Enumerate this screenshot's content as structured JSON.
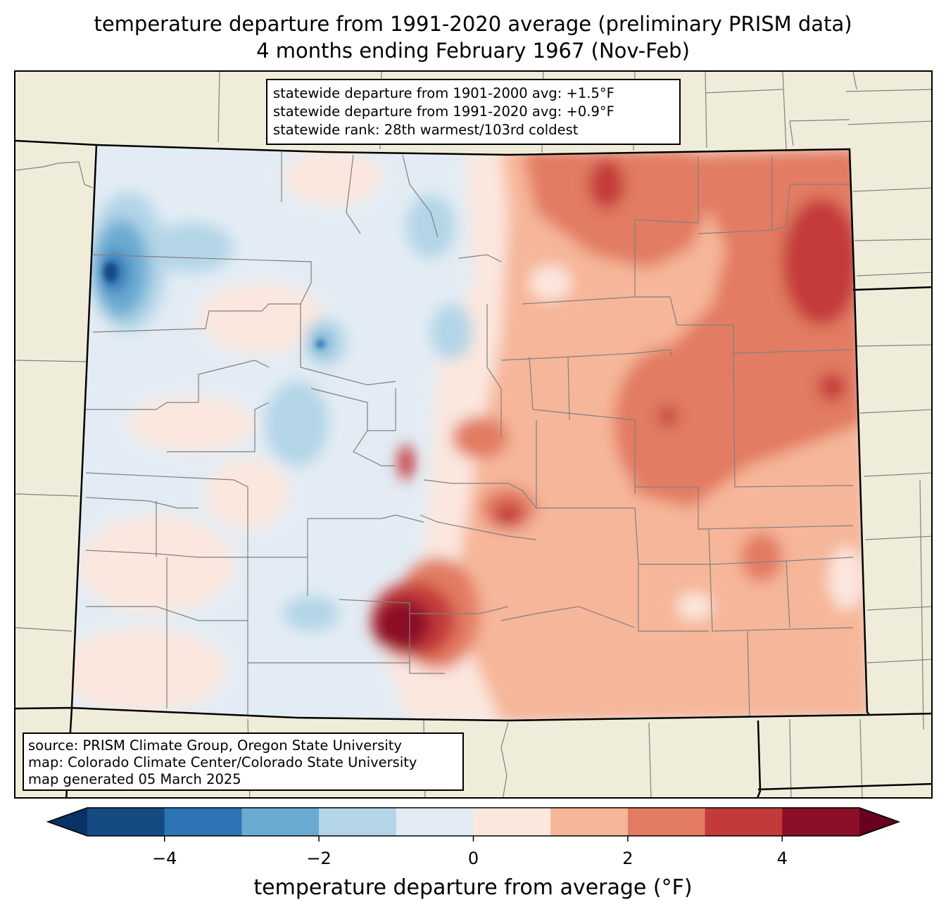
{
  "title": {
    "line1": "temperature departure from 1991-2020 average (preliminary PRISM data)",
    "line2": "4 months ending February 1967 (Nov-Feb)"
  },
  "stats": {
    "line1": "statewide departure from 1901-2000 avg: +1.5°F",
    "line2": "statewide departure from 1991-2020 avg: +0.9°F",
    "line3": "statewide rank: 28th warmest/103rd coldest"
  },
  "source": {
    "line1": "source: PRISM Climate Group, Oregon State University",
    "line2": "map: Colorado Climate Center/Colorado State University",
    "line3": "map generated 05 March 2025"
  },
  "colorbar": {
    "label": "temperature departure from average (°F)",
    "min": -5,
    "max": 5,
    "colors": [
      "#164a83",
      "#2d74b5",
      "#6aabd2",
      "#b3d5e7",
      "#e3ecf4",
      "#fbe7de",
      "#f6b699",
      "#e27b62",
      "#c33a3a",
      "#8b0f27"
    ],
    "under_color": "#093266",
    "over_color": "#68001f",
    "ticks": [
      {
        "value": -4,
        "label": "−4"
      },
      {
        "value": -2,
        "label": "−2"
      },
      {
        "value": 0,
        "label": "0"
      },
      {
        "value": 2,
        "label": "2"
      },
      {
        "value": 4,
        "label": "4"
      }
    ]
  },
  "colors": {
    "land_outside": "#efedda",
    "state_border": "#000000",
    "county_lines": "#808080"
  }
}
